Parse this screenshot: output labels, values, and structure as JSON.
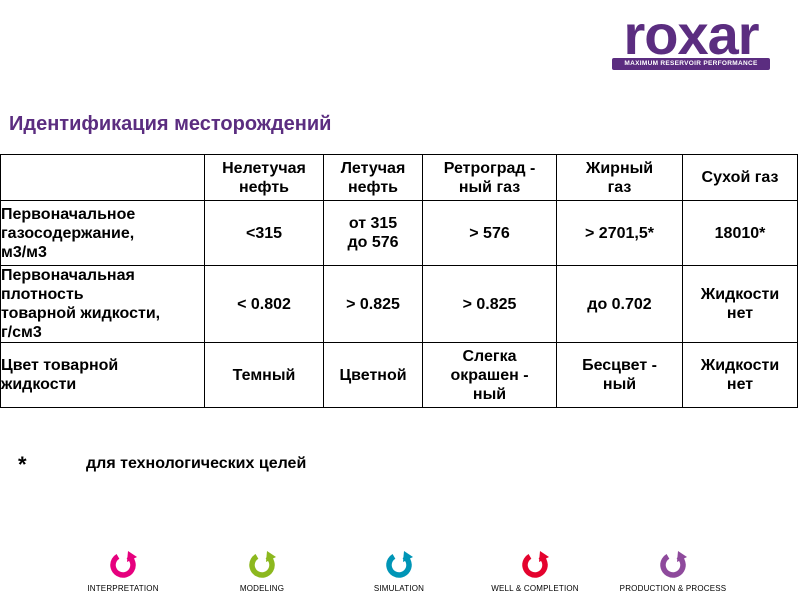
{
  "brand": {
    "name": "roxar",
    "tagline": "MAXIMUM RESERVOIR PERFORMANCE",
    "color": "#5b2d80"
  },
  "title": "Идентификация месторождений",
  "table": {
    "headers": [
      [
        "Нелетучая",
        "нефть"
      ],
      [
        "Летучая",
        "нефть"
      ],
      [
        "Ретроград -",
        "ный газ"
      ],
      [
        "Жирный",
        "газ"
      ],
      [
        "Сухой газ"
      ]
    ],
    "rows": [
      {
        "label": [
          "Первоначальное",
          "газосодержание,",
          "м3/м3"
        ],
        "cells": [
          [
            "<315"
          ],
          [
            "от 315",
            "до 576"
          ],
          [
            "> 576"
          ],
          [
            "> 2701,5*"
          ],
          [
            "18010*"
          ]
        ]
      },
      {
        "label": [
          "Первоначальная",
          "плотность",
          "товарной жидкости,",
          "г/см3"
        ],
        "cells": [
          [
            "< 0.802"
          ],
          [
            "> 0.825"
          ],
          [
            "> 0.825"
          ],
          [
            "до 0.702"
          ],
          [
            "Жидкости",
            "нет"
          ]
        ]
      },
      {
        "label": [
          "Цвет товарной",
          "жидкости"
        ],
        "cells": [
          [
            "Темный"
          ],
          [
            "Цветной"
          ],
          [
            "Слегка",
            "окрашен -",
            "ный"
          ],
          [
            "Бесцвет -",
            "ный"
          ],
          [
            "Жидкости",
            "нет"
          ]
        ]
      }
    ]
  },
  "footnote": {
    "marker": "*",
    "text": "для технологических целей"
  },
  "footer": [
    {
      "label": "INTERPRETATION",
      "color": "#e6007e",
      "icon": "interpretation-cycle-icon"
    },
    {
      "label": "MODELING",
      "color": "#8cb81e",
      "icon": "modeling-cycle-icon"
    },
    {
      "label": "SIMULATION",
      "color": "#0095b6",
      "icon": "simulation-cycle-icon"
    },
    {
      "label": "WELL & COMPLETION",
      "color": "#e4032e",
      "icon": "well-completion-cycle-icon"
    },
    {
      "label": "PRODUCTION & PROCESS",
      "color": "#8e4a9c",
      "icon": "production-process-cycle-icon"
    }
  ]
}
